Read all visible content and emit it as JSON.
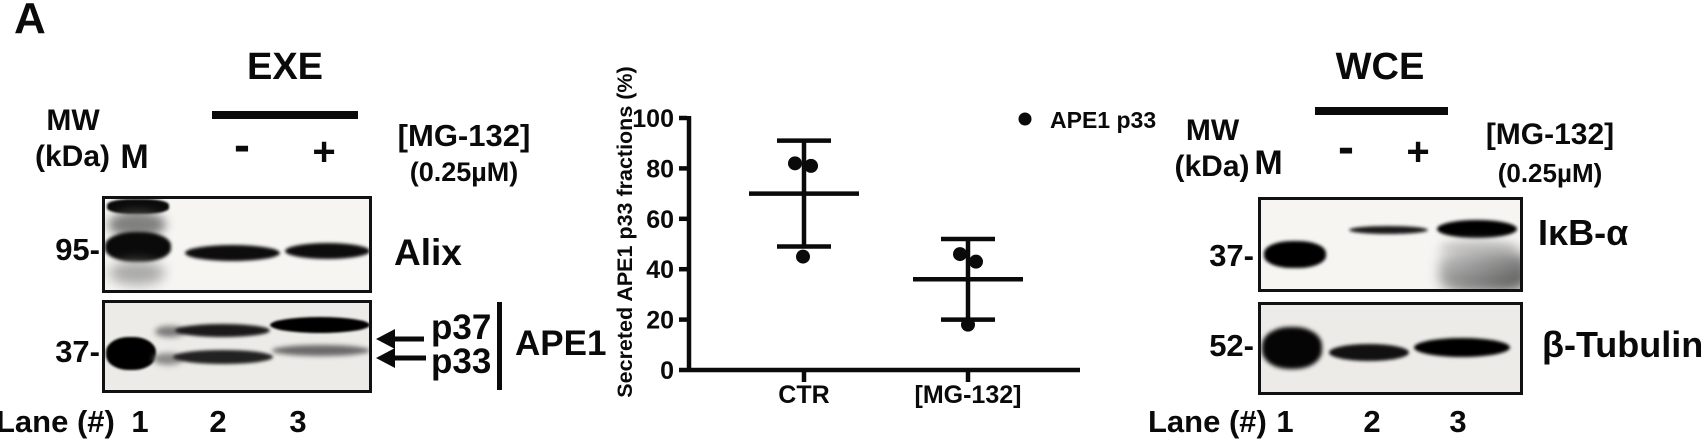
{
  "figure": {
    "panel_label": "A"
  },
  "left_blot": {
    "sample_title": "EXE",
    "mw_header": "MW",
    "mw_units": "(kDa)",
    "marker_lane": "M",
    "minus_label": "-",
    "plus_label": "+",
    "drug_label": "[MG-132]",
    "drug_conc": "(0.25µM)",
    "blot1_mw": "95-",
    "blot1_target": "Alix",
    "blot2_mw": "37-",
    "band_p37": "p37",
    "band_p33": "p33",
    "bracket_label": "APE1",
    "lane_header": "Lane (#)",
    "lane_numbers": [
      "1",
      "2",
      "3"
    ]
  },
  "right_blot": {
    "sample_title": "WCE",
    "mw_header": "MW",
    "mw_units": "(kDa)",
    "marker_lane": "M",
    "minus_label": "-",
    "plus_label": "+",
    "drug_label": "[MG-132]",
    "drug_conc": "(0.25µM)",
    "blot1_mw": "37-",
    "blot1_target": "IκB-α",
    "blot2_mw": "52-",
    "blot2_target": "β-Tubulin",
    "lane_header": "Lane (#)",
    "lane_numbers": [
      "1",
      "2",
      "3"
    ]
  },
  "chart_data": {
    "type": "scatter",
    "title": "",
    "xlabel": "",
    "ylabel": "Secreted APE1 p33 fractions (%)",
    "ylim": [
      0,
      100
    ],
    "yticks": [
      0,
      20,
      40,
      60,
      80,
      100
    ],
    "categories": [
      "CTR",
      "[MG-132]"
    ],
    "grid": false,
    "legend": {
      "marker": "dot",
      "label": "APE1 p33",
      "position": "top-right"
    },
    "series": [
      {
        "category": "CTR",
        "points": [
          82,
          81,
          45
        ],
        "mean": 70,
        "sd_low": 49,
        "sd_high": 91
      },
      {
        "category": "[MG-132]",
        "points": [
          46,
          43,
          18
        ],
        "mean": 36,
        "sd_low": 20,
        "sd_high": 52
      }
    ]
  }
}
